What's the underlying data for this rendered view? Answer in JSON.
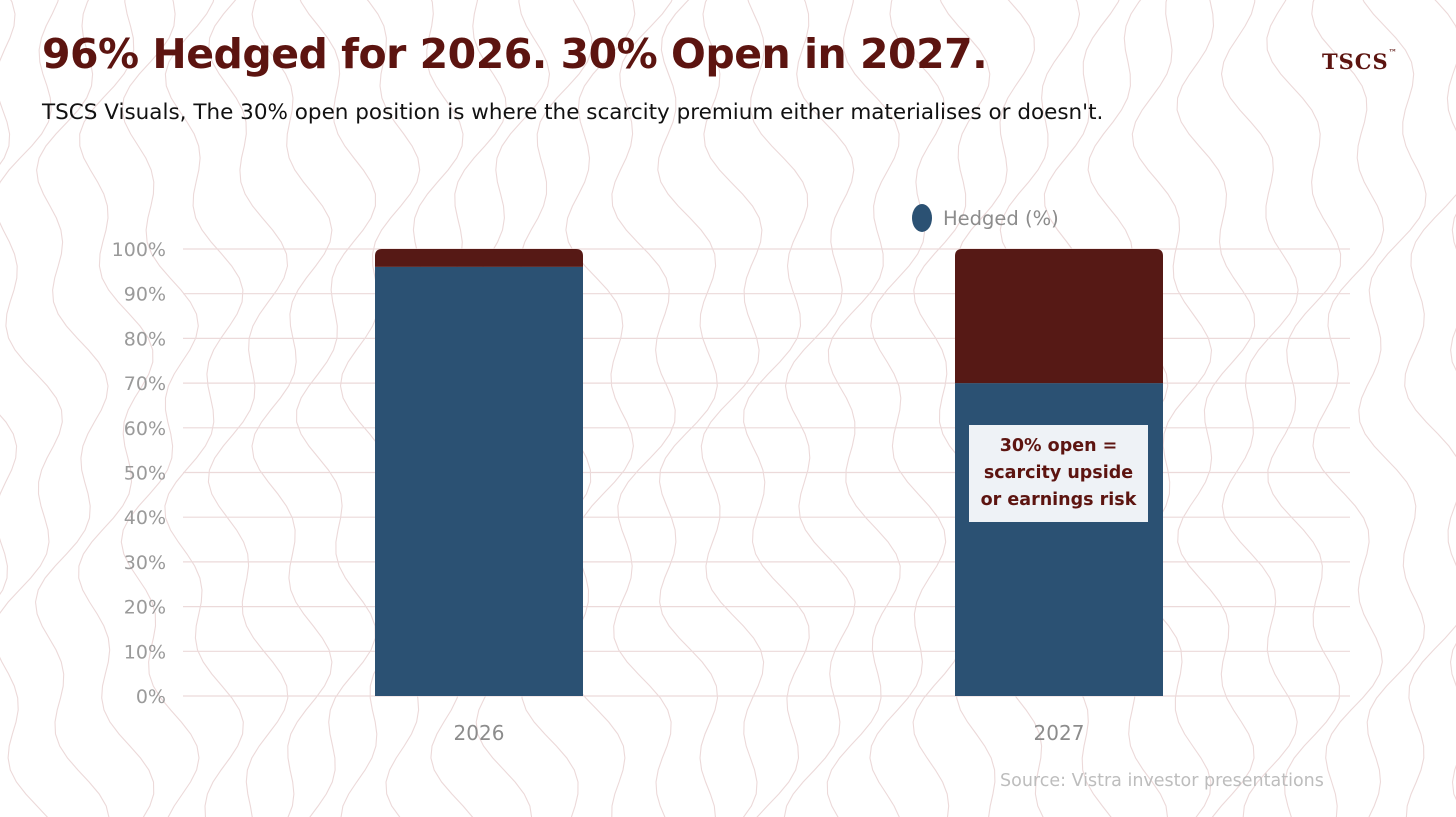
{
  "header": {
    "title": "96% Hedged for 2026. 30% Open in 2027.",
    "subtitle": "TSCS Visuals, The 30% open position is where the scarcity premium either materialises or doesn't.",
    "logo_text": "TSCS",
    "logo_mark": "™"
  },
  "source": "Source: Vistra investor presentations",
  "colors": {
    "hedged": "#2b5173",
    "open": "#561915",
    "title": "#5c1410",
    "grid": "#ecdada",
    "background_pattern": "#ecd9d9"
  },
  "callout": {
    "lines": [
      "30% open =",
      "scarcity upside",
      "or earnings risk"
    ]
  },
  "chart_data": {
    "type": "bar",
    "stacked": true,
    "categories": [
      "2026",
      "2027"
    ],
    "series": [
      {
        "name": "Hedged (%)",
        "values": [
          96,
          70
        ]
      },
      {
        "values": [
          4,
          30
        ]
      }
    ],
    "ylim": [
      0,
      100
    ],
    "yticks": [
      "0%",
      "10%",
      "20%",
      "30%",
      "40%",
      "50%",
      "60%",
      "70%",
      "80%",
      "90%",
      "100%"
    ],
    "grid": true,
    "legend_position": "top-right"
  }
}
